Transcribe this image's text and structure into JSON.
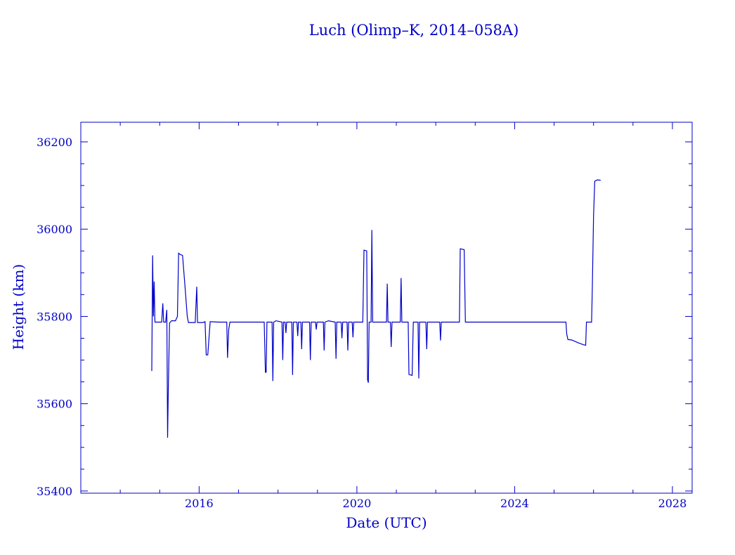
{
  "chart_data": {
    "type": "line",
    "title": "Luch (Olimp–K, 2014–058A)",
    "xlabel": "Date (UTC)",
    "ylabel": "Height (km)",
    "xlim": [
      2013.0,
      2028.5
    ],
    "ylim": [
      35395,
      36245
    ],
    "x_ticks": [
      2016,
      2020,
      2024,
      2028
    ],
    "x_tick_labels": [
      "2016",
      "2020",
      "2024",
      "2028"
    ],
    "x_minor_step": 1,
    "y_ticks": [
      35400,
      35600,
      35800,
      36000,
      36200
    ],
    "y_tick_labels": [
      "35400",
      "35600",
      "35800",
      "36000",
      "36200"
    ],
    "y_minor_step": 50,
    "grid": false,
    "color": "#0000c8",
    "series": [
      {
        "points": [
          [
            2014.8,
            35675
          ],
          [
            2014.82,
            35940
          ],
          [
            2014.84,
            35800
          ],
          [
            2014.86,
            35880
          ],
          [
            2014.88,
            35787
          ],
          [
            2015.0,
            35787
          ],
          [
            2015.05,
            35787
          ],
          [
            2015.08,
            35830
          ],
          [
            2015.1,
            35787
          ],
          [
            2015.15,
            35787
          ],
          [
            2015.18,
            35815
          ],
          [
            2015.2,
            35522
          ],
          [
            2015.22,
            35640
          ],
          [
            2015.25,
            35785
          ],
          [
            2015.3,
            35790
          ],
          [
            2015.4,
            35790
          ],
          [
            2015.45,
            35800
          ],
          [
            2015.48,
            35945
          ],
          [
            2015.52,
            35942
          ],
          [
            2015.58,
            35940
          ],
          [
            2015.65,
            35860
          ],
          [
            2015.7,
            35800
          ],
          [
            2015.73,
            35786
          ],
          [
            2015.8,
            35786
          ],
          [
            2015.9,
            35786
          ],
          [
            2015.94,
            35868
          ],
          [
            2015.96,
            35786
          ],
          [
            2016.0,
            35786
          ],
          [
            2016.1,
            35786
          ],
          [
            2016.15,
            35788
          ],
          [
            2016.18,
            35712
          ],
          [
            2016.22,
            35712
          ],
          [
            2016.28,
            35788
          ],
          [
            2016.5,
            35787
          ],
          [
            2016.65,
            35787
          ],
          [
            2016.7,
            35787
          ],
          [
            2016.72,
            35705
          ],
          [
            2016.75,
            35770
          ],
          [
            2016.78,
            35787
          ],
          [
            2017.0,
            35787
          ],
          [
            2017.3,
            35787
          ],
          [
            2017.6,
            35787
          ],
          [
            2017.65,
            35787
          ],
          [
            2017.68,
            35672
          ],
          [
            2017.7,
            35672
          ],
          [
            2017.72,
            35787
          ],
          [
            2017.85,
            35787
          ],
          [
            2017.87,
            35652
          ],
          [
            2017.89,
            35787
          ],
          [
            2017.95,
            35790
          ],
          [
            2018.1,
            35787
          ],
          [
            2018.12,
            35700
          ],
          [
            2018.14,
            35787
          ],
          [
            2018.18,
            35787
          ],
          [
            2018.2,
            35762
          ],
          [
            2018.22,
            35787
          ],
          [
            2018.35,
            35787
          ],
          [
            2018.37,
            35666
          ],
          [
            2018.39,
            35787
          ],
          [
            2018.48,
            35787
          ],
          [
            2018.5,
            35755
          ],
          [
            2018.52,
            35787
          ],
          [
            2018.58,
            35787
          ],
          [
            2018.6,
            35725
          ],
          [
            2018.62,
            35787
          ],
          [
            2018.8,
            35787
          ],
          [
            2018.82,
            35700
          ],
          [
            2018.84,
            35787
          ],
          [
            2018.95,
            35787
          ],
          [
            2018.97,
            35770
          ],
          [
            2018.99,
            35787
          ],
          [
            2019.15,
            35787
          ],
          [
            2019.17,
            35722
          ],
          [
            2019.19,
            35787
          ],
          [
            2019.28,
            35790
          ],
          [
            2019.45,
            35787
          ],
          [
            2019.47,
            35703
          ],
          [
            2019.49,
            35787
          ],
          [
            2019.6,
            35787
          ],
          [
            2019.62,
            35750
          ],
          [
            2019.64,
            35787
          ],
          [
            2019.75,
            35787
          ],
          [
            2019.77,
            35722
          ],
          [
            2019.79,
            35787
          ],
          [
            2019.88,
            35787
          ],
          [
            2019.9,
            35752
          ],
          [
            2019.92,
            35787
          ],
          [
            2020.05,
            35787
          ],
          [
            2020.15,
            35787
          ],
          [
            2020.18,
            35952
          ],
          [
            2020.25,
            35950
          ],
          [
            2020.27,
            35655
          ],
          [
            2020.29,
            35648
          ],
          [
            2020.31,
            35787
          ],
          [
            2020.36,
            35787
          ],
          [
            2020.38,
            35998
          ],
          [
            2020.4,
            35787
          ],
          [
            2020.5,
            35787
          ],
          [
            2020.7,
            35787
          ],
          [
            2020.75,
            35787
          ],
          [
            2020.77,
            35875
          ],
          [
            2020.79,
            35787
          ],
          [
            2020.85,
            35787
          ],
          [
            2020.87,
            35730
          ],
          [
            2020.89,
            35787
          ],
          [
            2021.1,
            35787
          ],
          [
            2021.12,
            35888
          ],
          [
            2021.14,
            35787
          ],
          [
            2021.2,
            35787
          ],
          [
            2021.3,
            35787
          ],
          [
            2021.32,
            35667
          ],
          [
            2021.4,
            35665
          ],
          [
            2021.43,
            35787
          ],
          [
            2021.55,
            35787
          ],
          [
            2021.57,
            35658
          ],
          [
            2021.59,
            35787
          ],
          [
            2021.75,
            35787
          ],
          [
            2021.77,
            35725
          ],
          [
            2021.79,
            35787
          ],
          [
            2021.95,
            35787
          ],
          [
            2022.1,
            35787
          ],
          [
            2022.12,
            35745
          ],
          [
            2022.14,
            35787
          ],
          [
            2022.3,
            35787
          ],
          [
            2022.5,
            35787
          ],
          [
            2022.6,
            35787
          ],
          [
            2022.62,
            35955
          ],
          [
            2022.72,
            35953
          ],
          [
            2022.75,
            35787
          ],
          [
            2022.8,
            35787
          ],
          [
            2023.0,
            35787
          ],
          [
            2023.5,
            35787
          ],
          [
            2024.0,
            35787
          ],
          [
            2024.5,
            35787
          ],
          [
            2025.0,
            35787
          ],
          [
            2025.3,
            35787
          ],
          [
            2025.32,
            35760
          ],
          [
            2025.35,
            35747
          ],
          [
            2025.45,
            35746
          ],
          [
            2025.6,
            35740
          ],
          [
            2025.75,
            35735
          ],
          [
            2025.8,
            35734
          ],
          [
            2025.82,
            35787
          ],
          [
            2025.95,
            35787
          ],
          [
            2025.97,
            35870
          ],
          [
            2026.0,
            36030
          ],
          [
            2026.03,
            36110
          ],
          [
            2026.1,
            36113
          ],
          [
            2026.18,
            36112
          ]
        ]
      }
    ]
  }
}
